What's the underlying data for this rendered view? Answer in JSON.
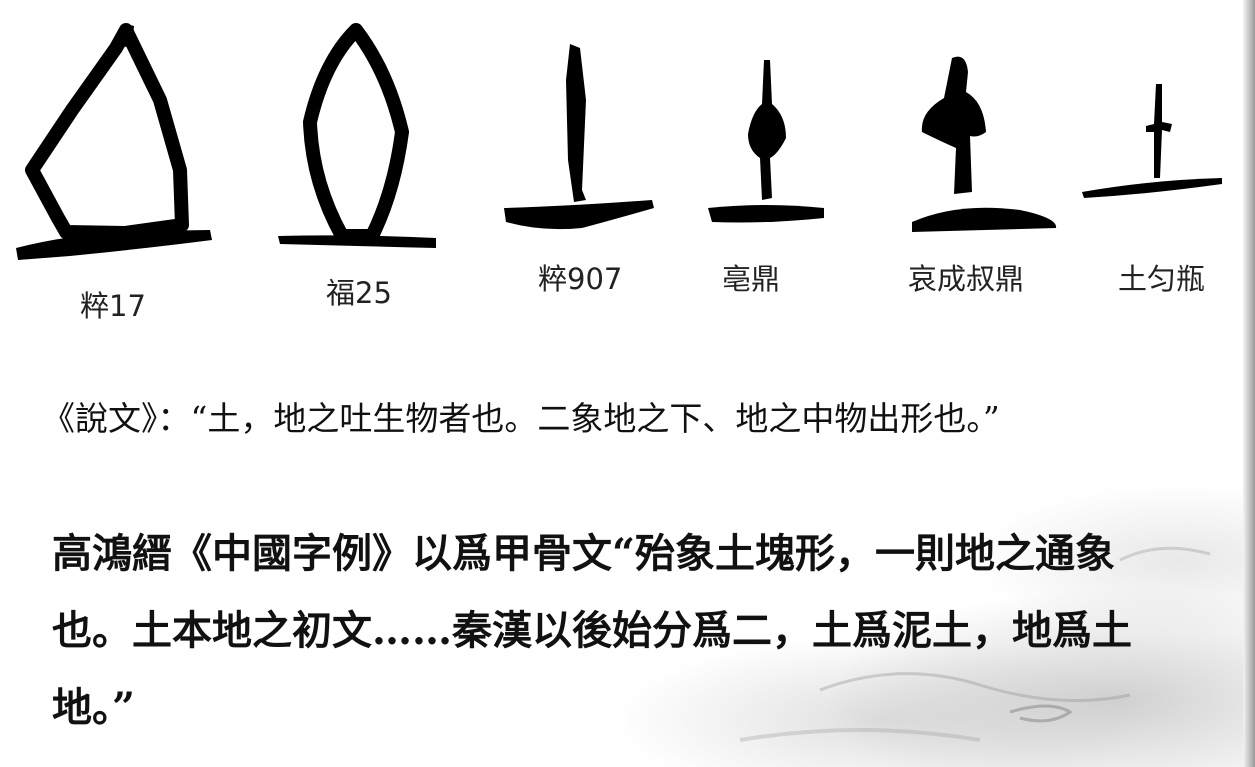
{
  "glyphs": [
    {
      "name": "glyph-cui-17",
      "label": "粹17"
    },
    {
      "name": "glyph-fu-25",
      "label": "福25"
    },
    {
      "name": "glyph-cui-907",
      "label": "粹907"
    },
    {
      "name": "glyph-bo-ding",
      "label": "亳鼎"
    },
    {
      "name": "glyph-aichengshu-ding",
      "label": "哀成叔鼎"
    },
    {
      "name": "glyph-tu-yun-ping",
      "label": "土匀瓶"
    }
  ],
  "shuowen_quote": "《說文》：“土，地之吐生物者也。二象地之下、地之中物出形也。”",
  "gao_paragraph": "高鴻縉《中國字例》以爲甲骨文“殆象土塊形，一則地之通象也。土本地之初文……秦漢以後始分爲二，土爲泥土，地爲土地。”",
  "ink": "#000000"
}
